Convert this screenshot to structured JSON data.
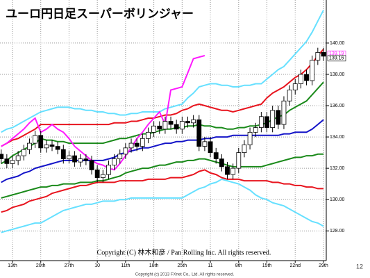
{
  "chart_data": {
    "type": "candlestick",
    "title": "ユーロ円日足スーパーボリンジャー",
    "annotation": "Copyright (C) 林木和彦 / Pan Rolling Inc. All rights reserved.",
    "categories": [
      null,
      null,
      "13th",
      null,
      null,
      null,
      null,
      "20th",
      null,
      null,
      null,
      null,
      "27th",
      null,
      null,
      null,
      null,
      "10",
      null,
      null,
      null,
      null,
      "11th",
      null,
      null,
      null,
      null,
      "18th",
      null,
      null,
      null,
      null,
      "25th",
      null,
      null,
      null,
      null,
      "11",
      null,
      null,
      null,
      null,
      "8th",
      null,
      null,
      null,
      null,
      "15th",
      null,
      null,
      null,
      null,
      "22nd",
      null,
      null,
      null,
      null,
      "29th"
    ],
    "open": [
      132.9,
      132.6,
      132.3,
      132.5,
      132.8,
      133.2,
      133.6,
      134.1,
      133.3,
      133.5,
      133.4,
      133.2,
      132.6,
      132.8,
      132.4,
      132.6,
      132.5,
      131.9,
      131.4,
      131.6,
      132.2,
      132.6,
      132.9,
      133.3,
      133.6,
      133.4,
      133.9,
      134.3,
      134.7,
      134.5,
      135.0,
      134.8,
      134.5,
      135.0,
      134.9,
      135.1,
      133.4,
      133.7,
      133.0,
      132.6,
      132.1,
      131.6,
      132.0,
      133.0,
      133.5,
      134.3,
      134.6,
      135.3,
      134.6,
      135.7,
      134.8,
      136.3,
      137.0,
      137.4,
      138.0,
      137.6,
      138.9,
      139.4
    ],
    "high": [
      133.2,
      132.9,
      132.8,
      133.1,
      133.5,
      133.9,
      134.4,
      134.4,
      133.8,
      133.8,
      133.7,
      133.5,
      133.1,
      133.1,
      132.9,
      132.9,
      132.8,
      132.2,
      131.9,
      132.5,
      132.9,
      133.2,
      133.6,
      133.9,
      133.9,
      134.2,
      134.6,
      135.0,
      135.0,
      135.3,
      135.3,
      135.1,
      135.3,
      135.3,
      135.4,
      135.4,
      134.0,
      134.0,
      133.3,
      132.9,
      132.4,
      132.3,
      133.3,
      133.8,
      134.6,
      134.9,
      135.6,
      135.6,
      136.0,
      136.0,
      136.6,
      137.3,
      137.7,
      138.3,
      138.3,
      139.2,
      139.7,
      139.7
    ],
    "low": [
      132.3,
      132.0,
      132.0,
      132.2,
      132.5,
      132.9,
      133.3,
      133.0,
      133.0,
      133.1,
      132.9,
      132.3,
      132.3,
      132.1,
      132.1,
      132.2,
      131.6,
      131.1,
      131.1,
      131.3,
      131.9,
      132.3,
      132.6,
      133.0,
      133.1,
      133.1,
      133.6,
      134.0,
      134.2,
      134.2,
      134.5,
      134.2,
      134.2,
      134.6,
      134.6,
      133.1,
      133.1,
      132.7,
      132.3,
      131.8,
      131.3,
      131.3,
      131.7,
      132.7,
      133.2,
      134.0,
      134.3,
      134.3,
      134.3,
      134.5,
      134.5,
      136.0,
      136.7,
      137.1,
      137.3,
      137.3,
      138.6,
      138.86
    ],
    "close": [
      132.6,
      132.3,
      132.5,
      132.8,
      133.2,
      133.6,
      134.1,
      133.3,
      133.5,
      133.4,
      133.2,
      132.6,
      132.8,
      132.4,
      132.6,
      132.5,
      131.9,
      131.4,
      131.6,
      132.2,
      132.6,
      132.9,
      133.3,
      133.6,
      133.4,
      133.9,
      134.3,
      134.7,
      134.5,
      135.0,
      134.8,
      134.5,
      135.0,
      134.9,
      135.1,
      133.4,
      133.7,
      133.0,
      132.6,
      132.1,
      131.6,
      132.0,
      133.0,
      133.5,
      134.3,
      134.6,
      135.3,
      134.6,
      135.7,
      134.8,
      136.3,
      137.0,
      137.4,
      138.0,
      137.6,
      138.9,
      139.4,
      139.16
    ],
    "up_color": "#ffffff",
    "down_color": "#000000",
    "series": [
      {
        "color": "#66e0ff",
        "values": [
          134.3,
          134.5,
          134.6,
          134.8,
          135.0,
          135.2,
          135.4,
          135.6,
          135.7,
          135.8,
          135.9,
          135.9,
          135.9,
          135.8,
          135.8,
          135.7,
          135.7,
          135.6,
          135.6,
          135.5,
          135.5,
          135.4,
          135.4,
          135.5,
          135.5,
          135.6,
          135.6,
          135.6,
          135.6,
          135.8,
          135.9,
          136.0,
          136.1,
          136.5,
          136.8,
          137.2,
          137.3,
          137.4,
          137.4,
          137.3,
          137.3,
          137.2,
          137.2,
          137.3,
          137.3,
          137.4,
          137.4,
          137.7,
          138.0,
          138.3,
          138.5,
          138.9,
          139.3,
          139.7,
          140.1,
          140.7,
          141.4,
          142.1
        ]
      },
      {
        "color": "#e8141e",
        "values": [
          133.4,
          133.6,
          133.8,
          133.9,
          134.1,
          134.3,
          134.5,
          134.8,
          134.8,
          134.8,
          134.8,
          134.8,
          134.8,
          134.8,
          134.8,
          134.8,
          134.8,
          134.8,
          134.8,
          134.8,
          134.9,
          134.9,
          134.9,
          135.0,
          135.0,
          135.1,
          135.2,
          135.2,
          135.3,
          135.4,
          135.4,
          135.5,
          135.7,
          135.8,
          136.0,
          136.1,
          136.0,
          135.9,
          135.8,
          135.7,
          135.7,
          135.6,
          135.7,
          135.8,
          135.9,
          136.0,
          136.1,
          136.5,
          136.8,
          137.0,
          137.2,
          137.5,
          137.8,
          138.0,
          138.3,
          138.7,
          139.2,
          139.6
        ]
      },
      {
        "color": "#1a8a1a",
        "values": [
          132.3,
          132.5,
          132.8,
          133.0,
          133.2,
          133.4,
          133.6,
          133.9,
          133.8,
          133.8,
          133.7,
          133.7,
          133.6,
          133.6,
          133.6,
          133.6,
          133.6,
          133.6,
          133.6,
          133.7,
          133.8,
          133.9,
          133.9,
          134.0,
          134.1,
          134.2,
          134.2,
          134.3,
          134.4,
          134.5,
          134.5,
          134.6,
          134.6,
          134.7,
          134.7,
          134.8,
          134.7,
          134.7,
          134.6,
          134.6,
          134.5,
          134.5,
          134.6,
          134.6,
          134.7,
          134.7,
          134.8,
          134.9,
          135.1,
          135.3,
          135.4,
          135.7,
          135.9,
          136.1,
          136.3,
          136.7,
          137.1,
          137.5
        ]
      },
      {
        "color": "#1414c8",
        "values": [
          131.1,
          131.3,
          131.4,
          131.5,
          131.7,
          131.8,
          132.0,
          132.1,
          132.2,
          132.3,
          132.4,
          132.5,
          132.5,
          132.5,
          132.5,
          132.5,
          132.5,
          132.5,
          132.5,
          132.6,
          132.7,
          132.9,
          133.0,
          133.1,
          133.2,
          133.3,
          133.3,
          133.4,
          133.5,
          133.6,
          133.6,
          133.7,
          133.7,
          133.8,
          133.8,
          133.8,
          133.9,
          133.9,
          134.0,
          134.0,
          134.0,
          134.1,
          134.1,
          134.1,
          134.1,
          134.1,
          134.1,
          134.1,
          134.1,
          134.1,
          134.2,
          134.2,
          134.3,
          134.3,
          134.3,
          134.5,
          134.8,
          135.1
        ]
      },
      {
        "color": "#1a8a1a",
        "values": [
          130.1,
          130.2,
          130.3,
          130.4,
          130.5,
          130.6,
          130.7,
          130.8,
          130.8,
          130.9,
          130.9,
          131.0,
          131.0,
          131.0,
          131.1,
          131.1,
          131.1,
          131.2,
          131.2,
          131.3,
          131.4,
          131.5,
          131.7,
          131.8,
          131.9,
          132.0,
          132.0,
          132.1,
          132.2,
          132.2,
          132.3,
          132.4,
          132.4,
          132.5,
          132.5,
          132.6,
          132.6,
          132.5,
          132.4,
          132.3,
          132.2,
          132.1,
          132.1,
          132.1,
          132.1,
          132.1,
          132.1,
          132.2,
          132.3,
          132.4,
          132.5,
          132.6,
          132.7,
          132.7,
          132.8,
          132.8,
          132.9,
          132.9
        ]
      },
      {
        "color": "#e8141e",
        "values": [
          129.2,
          129.3,
          129.5,
          129.6,
          129.7,
          129.9,
          130.0,
          130.1,
          130.2,
          130.4,
          130.5,
          130.6,
          130.7,
          130.8,
          130.9,
          130.9,
          131.0,
          131.1,
          131.1,
          131.1,
          131.1,
          131.2,
          131.2,
          131.2,
          131.2,
          131.2,
          131.3,
          131.3,
          131.3,
          131.3,
          131.4,
          131.4,
          131.4,
          131.5,
          131.6,
          131.8,
          131.9,
          131.7,
          131.6,
          131.4,
          131.3,
          131.3,
          131.3,
          131.2,
          131.2,
          131.2,
          131.2,
          131.2,
          131.1,
          131.1,
          131.0,
          131.0,
          130.9,
          130.9,
          130.8,
          130.8,
          130.7,
          130.7
        ]
      },
      {
        "color": "#66e0ff",
        "values": [
          127.9,
          128.0,
          128.1,
          128.2,
          128.3,
          128.4,
          128.5,
          128.5,
          128.7,
          128.9,
          129.1,
          129.3,
          129.4,
          129.5,
          129.6,
          129.7,
          129.7,
          129.8,
          129.9,
          129.9,
          129.9,
          130.0,
          130.0,
          130.1,
          130.1,
          130.1,
          130.1,
          130.1,
          130.1,
          130.1,
          130.1,
          130.1,
          130.1,
          130.3,
          130.5,
          130.7,
          130.8,
          131.0,
          131.1,
          131.3,
          131.2,
          131.1,
          131.0,
          130.8,
          130.6,
          130.3,
          130.1,
          130.0,
          129.8,
          129.7,
          129.6,
          129.4,
          129.2,
          129.0,
          128.8,
          128.6,
          128.5,
          128.3
        ]
      },
      {
        "color": "#ff19ff",
        "values": [
          133.4,
          133.6,
          133.9,
          134.2,
          134.5,
          134.9,
          135.2,
          134.3,
          134.5,
          134.8,
          134.5,
          134.3,
          133.9,
          133.4,
          133.1,
          132.8,
          132.5,
          132.3,
          132.2,
          132.0,
          131.9,
          132.3,
          132.8,
          133.3,
          133.9,
          134.3,
          134.8,
          135.2,
          135.6,
          134.8,
          137.0,
          137.1,
          137.2,
          138.1,
          139.0,
          139.1,
          139.2,
          null,
          null,
          null,
          null,
          null,
          null,
          null,
          null,
          null,
          null,
          null,
          null,
          null,
          null,
          null,
          null,
          null,
          null,
          null,
          null,
          null
        ]
      }
    ],
    "price_labels": [
      {
        "value": 139.19,
        "label": "139.19",
        "color": "#ff19ff"
      },
      {
        "value": 139.16,
        "label": "139.16",
        "color": "#000000"
      }
    ],
    "ylim": [
      126.1,
      142.75
    ],
    "yticks": [
      {
        "value": 128,
        "label": "128.00"
      },
      {
        "value": 130,
        "label": "130.00"
      },
      {
        "value": 132,
        "label": "132.00"
      },
      {
        "value": 134,
        "label": "134.00"
      },
      {
        "value": 136,
        "label": "136.00"
      },
      {
        "value": 138,
        "label": "138.00"
      },
      {
        "value": 140,
        "label": "140.00"
      }
    ],
    "grid": true
  },
  "footer": {
    "notice": "Copyright (c) 2013 FXnet Co., Ltd. All rights reserved.",
    "page": "12"
  }
}
